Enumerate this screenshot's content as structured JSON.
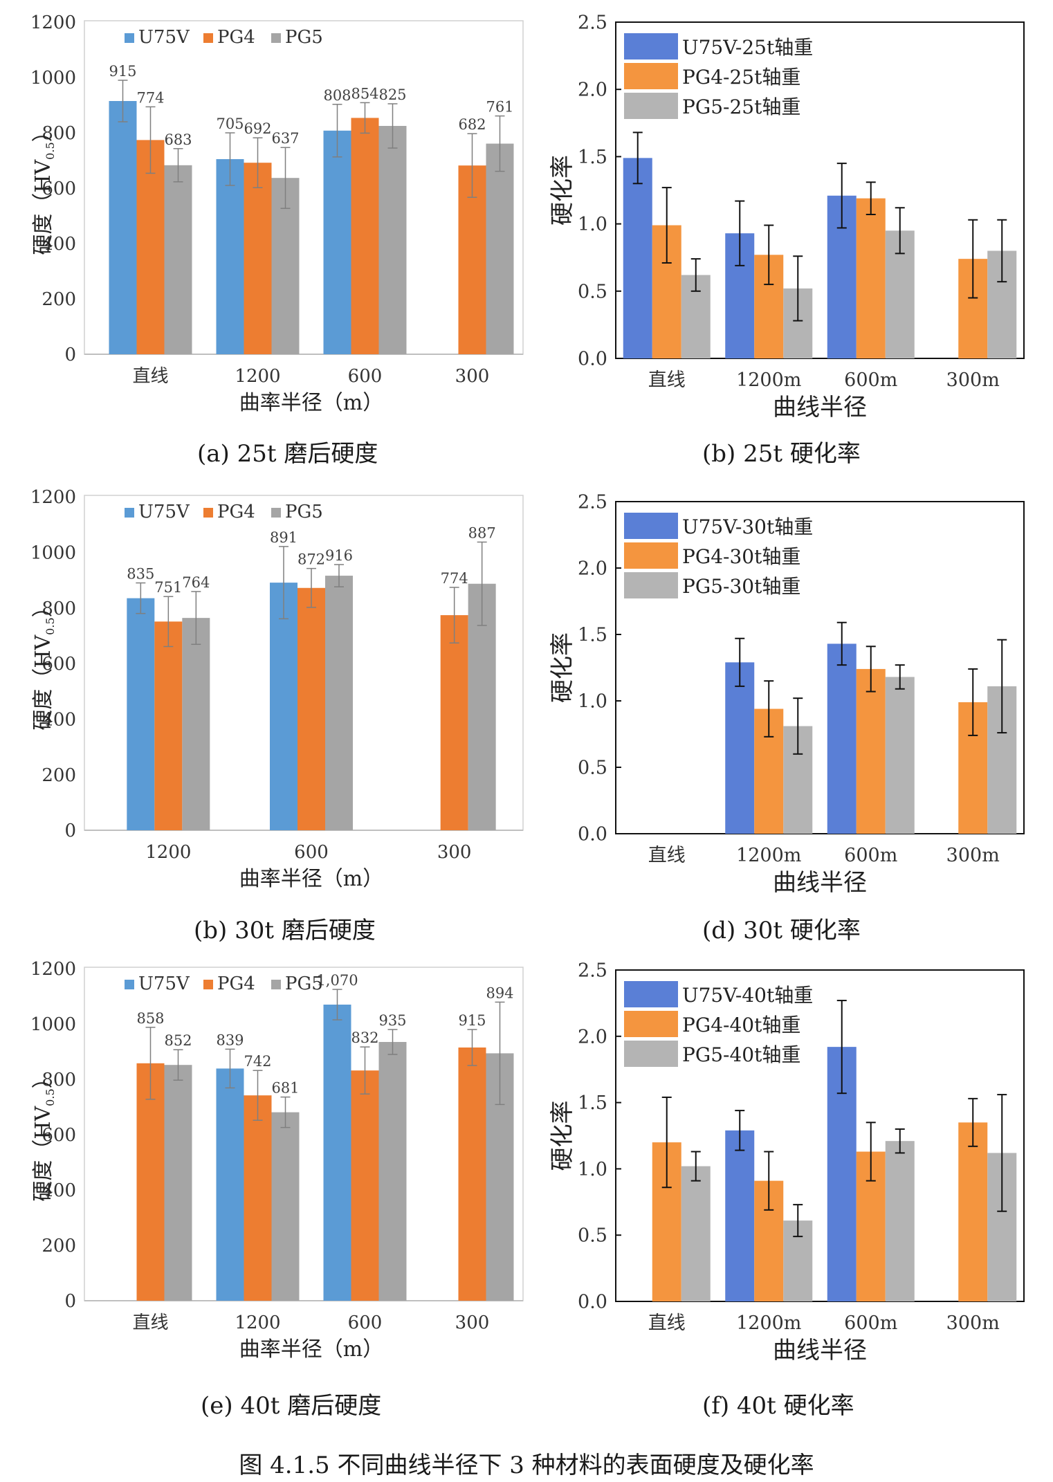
{
  "figure_caption": "图  4.1.5 不同曲线半径下 3 种材料的表面硬度及硬化率",
  "colors": {
    "u75v_hard": "#5b9bd5",
    "pg4_hard": "#ed7d31",
    "pg5_hard": "#a5a5a5",
    "u75v_rate": "#5a7fd6",
    "pg4_rate": "#f4953f",
    "pg5_rate": "#b4b4b4"
  },
  "chart_data": [
    {
      "id": "a",
      "type": "bar",
      "caption": "(a) 25t 磨后硬度",
      "categories": [
        "直线",
        "1200",
        "600",
        "300"
      ],
      "xlabel": "曲率半径（m）",
      "ylabel": "硬度（HV0.5）",
      "ylabel_main": "硬度（HV",
      "ylabel_sub": "0.5",
      "ylabel_end": "）",
      "ylim": [
        0,
        1200
      ],
      "yticks": [
        "0",
        "200",
        "400",
        "600",
        "800",
        "1000",
        "1200"
      ],
      "legend_position": "top-left",
      "data_labels": true,
      "series": [
        {
          "name": "U75V",
          "values": [
            915,
            705,
            808,
            null
          ],
          "errors": [
            75,
            95,
            95,
            null
          ],
          "labels": [
            "915",
            "705",
            "808",
            ""
          ]
        },
        {
          "name": "PG4",
          "values": [
            774,
            692,
            854,
            682
          ],
          "errors": [
            120,
            90,
            55,
            115
          ],
          "labels": [
            "774",
            "692",
            "854",
            "682"
          ]
        },
        {
          "name": "PG5",
          "values": [
            683,
            637,
            825,
            761
          ],
          "errors": [
            60,
            110,
            80,
            100
          ],
          "labels": [
            "683",
            "637",
            "825",
            "761"
          ]
        }
      ]
    },
    {
      "id": "b",
      "type": "bar",
      "caption": "(b) 25t 硬化率",
      "categories": [
        "直线",
        "1200m",
        "600m",
        "300m"
      ],
      "xlabel": "曲线半径",
      "ylabel": "硬化率",
      "ylim": [
        0,
        2.5
      ],
      "yticks": [
        "0.0",
        "0.5",
        "1.0",
        "1.5",
        "2.0",
        "2.5"
      ],
      "legend_position": "top-left",
      "series": [
        {
          "name": "U75V-25t轴重",
          "values": [
            1.49,
            0.93,
            1.21,
            null
          ],
          "errors": [
            0.19,
            0.24,
            0.24,
            null
          ]
        },
        {
          "name": "PG4-25t轴重",
          "values": [
            0.99,
            0.77,
            1.19,
            0.74
          ],
          "errors": [
            0.28,
            0.22,
            0.12,
            0.29
          ]
        },
        {
          "name": "PG5-25t轴重",
          "values": [
            0.62,
            0.52,
            0.95,
            0.8
          ],
          "errors": [
            0.12,
            0.24,
            0.17,
            0.23
          ]
        }
      ]
    },
    {
      "id": "c",
      "type": "bar",
      "caption": "(b)  30t 磨后硬度",
      "categories": [
        "1200",
        "600",
        "300"
      ],
      "xlabel": "曲率半径（m）",
      "ylabel": "硬度（HV0.5）",
      "ylabel_main": "硬度（HV",
      "ylabel_sub": "0.5",
      "ylabel_end": "）",
      "ylim": [
        0,
        1200
      ],
      "yticks": [
        "0",
        "200",
        "400",
        "600",
        "800",
        "1000",
        "1200"
      ],
      "legend_position": "top-left",
      "data_labels": true,
      "series": [
        {
          "name": "U75V",
          "values": [
            835,
            891,
            null
          ],
          "errors": [
            55,
            130,
            null
          ],
          "labels": [
            "835",
            "891",
            ""
          ]
        },
        {
          "name": "PG4",
          "values": [
            751,
            872,
            774
          ],
          "errors": [
            90,
            70,
            100
          ],
          "labels": [
            "751",
            "872",
            "774"
          ]
        },
        {
          "name": "PG5",
          "values": [
            764,
            916,
            887
          ],
          "errors": [
            95,
            40,
            150
          ],
          "labels": [
            "764",
            "916",
            "887"
          ]
        }
      ]
    },
    {
      "id": "d",
      "type": "bar",
      "caption": "(d) 30t 硬化率",
      "categories": [
        "直线",
        "1200m",
        "600m",
        "300m"
      ],
      "xlabel": "曲线半径",
      "ylabel": "硬化率",
      "ylim": [
        0,
        2.5
      ],
      "yticks": [
        "0.0",
        "0.5",
        "1.0",
        "1.5",
        "2.0",
        "2.5"
      ],
      "legend_position": "top-left",
      "series": [
        {
          "name": "U75V-30t轴重",
          "values": [
            null,
            1.29,
            1.43,
            null
          ],
          "errors": [
            null,
            0.18,
            0.16,
            null
          ]
        },
        {
          "name": "PG4-30t轴重",
          "values": [
            null,
            0.94,
            1.24,
            0.99
          ],
          "errors": [
            null,
            0.21,
            0.17,
            0.25
          ]
        },
        {
          "name": "PG5-30t轴重",
          "values": [
            null,
            0.81,
            1.18,
            1.11
          ],
          "errors": [
            null,
            0.21,
            0.09,
            0.35
          ]
        }
      ]
    },
    {
      "id": "e",
      "type": "bar",
      "caption": "(e) 40t 磨后硬度",
      "categories": [
        "直线",
        "1200",
        "600",
        "300"
      ],
      "xlabel": "曲率半径（m）",
      "ylabel": "硬度（HV0.5）",
      "ylabel_main": "硬度（HV",
      "ylabel_sub": "0.5",
      "ylabel_end": "）",
      "ylim": [
        0,
        1200
      ],
      "yticks": [
        "0",
        "200",
        "400",
        "600",
        "800",
        "1000",
        "1200"
      ],
      "legend_position": "top-left",
      "data_labels": true,
      "series": [
        {
          "name": "U75V",
          "values": [
            null,
            839,
            1070,
            null
          ],
          "errors": [
            null,
            70,
            55,
            null
          ],
          "labels": [
            "",
            "839",
            "1,070",
            ""
          ]
        },
        {
          "name": "PG4",
          "values": [
            858,
            742,
            832,
            915
          ],
          "errors": [
            130,
            90,
            85,
            65
          ],
          "labels": [
            "858",
            "742",
            "832",
            "915"
          ]
        },
        {
          "name": "PG5",
          "values": [
            852,
            681,
            935,
            894
          ],
          "errors": [
            55,
            55,
            45,
            185
          ],
          "labels": [
            "852",
            "681",
            "935",
            "894"
          ]
        }
      ]
    },
    {
      "id": "f",
      "type": "bar",
      "caption": "(f) 40t 硬化率",
      "categories": [
        "直线",
        "1200m",
        "600m",
        "300m"
      ],
      "xlabel": "曲线半径",
      "ylabel": "硬化率",
      "ylim": [
        0,
        2.5
      ],
      "yticks": [
        "0.0",
        "0.5",
        "1.0",
        "1.5",
        "2.0",
        "2.5"
      ],
      "legend_position": "top-left",
      "series": [
        {
          "name": "U75V-40t轴重",
          "values": [
            null,
            1.29,
            1.92,
            null
          ],
          "errors": [
            null,
            0.15,
            0.35,
            null
          ]
        },
        {
          "name": "PG4-40t轴重",
          "values": [
            1.2,
            0.91,
            1.13,
            1.35
          ],
          "errors": [
            0.34,
            0.22,
            0.22,
            0.18
          ]
        },
        {
          "name": "PG5-40t轴重",
          "values": [
            1.02,
            0.61,
            1.21,
            1.12
          ],
          "errors": [
            0.11,
            0.12,
            0.09,
            0.44
          ]
        }
      ]
    }
  ]
}
